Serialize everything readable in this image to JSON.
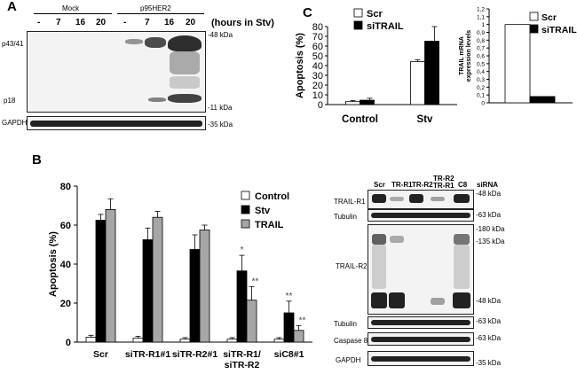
{
  "panels": {
    "a": "A",
    "b": "B",
    "c": "C"
  },
  "panel_a": {
    "group_mock": "Mock",
    "group_p95": "p95HER2",
    "time_labels": [
      "-",
      "7",
      "16",
      "20",
      "-",
      "7",
      "16",
      "20"
    ],
    "time_caption": "(hours in Stv)",
    "row_p43": "p43/41",
    "row_p18": "p18",
    "row_gapdh": "GAPDH",
    "mw_48": "-48 kDa",
    "mw_11": "-11 kDa",
    "mw_35": "-35 kDa"
  },
  "panel_b_blots": {
    "lanes": [
      "Scr",
      "TR-R1",
      "TR-R2",
      "TR-R2",
      "TR-R1",
      "C8"
    ],
    "sirna_label": "siRNA",
    "rows": {
      "trail_r1": "TRAIL-R1",
      "tubulin1": "Tubulin",
      "trail_r2": "TRAIL-R2",
      "tubulin2": "Tubulin",
      "caspase8": "Caspase 8",
      "gapdh": "GAPDH"
    },
    "mw": {
      "r1": "-48 kDa",
      "tub1": "-63 kDa",
      "r2_180": "-180 kDa",
      "r2_135": "-135 kDa",
      "r2_48": "-48 kDa",
      "tub2": "-63 kDa",
      "casp": "-63 kDa",
      "gapdh": "-35 kDa"
    }
  },
  "colors": {
    "control": "#ffffff",
    "stv": "#000000",
    "trail": "#a6a6a6",
    "scr": "#ffffff",
    "sitrail": "#000000"
  },
  "chart_data": [
    {
      "id": "B",
      "type": "bar",
      "ylabel": "Apoptosis (%)",
      "ylim": [
        0,
        80
      ],
      "yticks": [
        "0",
        "20",
        "40",
        "60",
        "80"
      ],
      "categories": [
        "Scr",
        "siTR-R1#1",
        "siTR-R2#1",
        "siTR-R1/ siTR-R2",
        "siC8#1"
      ],
      "category_lines": [
        [
          "Scr"
        ],
        [
          "siTR-R1#1"
        ],
        [
          "siTR-R2#1"
        ],
        [
          "siTR-R1/",
          "siTR-R2"
        ],
        [
          "siC8#1"
        ]
      ],
      "series": [
        {
          "name": "Control",
          "values": [
            2.5,
            2,
            1.5,
            1.5,
            1.5
          ],
          "errors": [
            1,
            1,
            0.8,
            0.8,
            0.8
          ]
        },
        {
          "name": "Stv",
          "values": [
            62.5,
            52.5,
            47.5,
            36.5,
            15
          ],
          "errors": [
            3,
            6,
            7.5,
            8,
            6
          ]
        },
        {
          "name": "TRAIL",
          "values": [
            68,
            64,
            57.5,
            21.5,
            6
          ],
          "errors": [
            5.5,
            3,
            2.5,
            7,
            2.5
          ]
        }
      ],
      "annotations": [
        {
          "category": 3,
          "series": 1,
          "text": "*"
        },
        {
          "category": 3,
          "series": 2,
          "text": "**"
        },
        {
          "category": 4,
          "series": 1,
          "text": "**"
        },
        {
          "category": 4,
          "series": 2,
          "text": "**"
        }
      ],
      "legend": "top-right"
    },
    {
      "id": "C-apoptosis",
      "type": "bar",
      "ylabel": "Apoptosis (%)",
      "ylim": [
        0,
        80
      ],
      "yticks": [
        "0",
        "10",
        "20",
        "30",
        "40",
        "50",
        "60",
        "70",
        "80"
      ],
      "categories": [
        "Control",
        "Stv"
      ],
      "series": [
        {
          "name": "Scr",
          "values": [
            3,
            44
          ],
          "errors": [
            1,
            2
          ]
        },
        {
          "name": "siTRAIL",
          "values": [
            4.5,
            65
          ],
          "errors": [
            2,
            15
          ]
        }
      ],
      "legend": "top-left"
    },
    {
      "id": "C-mrna",
      "type": "bar",
      "ylabel": "TRAIL mRNA expression levels",
      "ylim": [
        0,
        1.2
      ],
      "yticks": [
        "0",
        "0,1",
        "0,2",
        "0,3",
        "0,4",
        "0,5",
        "0,6",
        "0,7",
        "0,8",
        "0,9",
        "1",
        "1,1",
        "1,2"
      ],
      "categories": [
        ""
      ],
      "series": [
        {
          "name": "Scr",
          "values": [
            1.0
          ]
        },
        {
          "name": "siTRAIL",
          "values": [
            0.08
          ]
        }
      ],
      "legend": "top-right"
    }
  ]
}
